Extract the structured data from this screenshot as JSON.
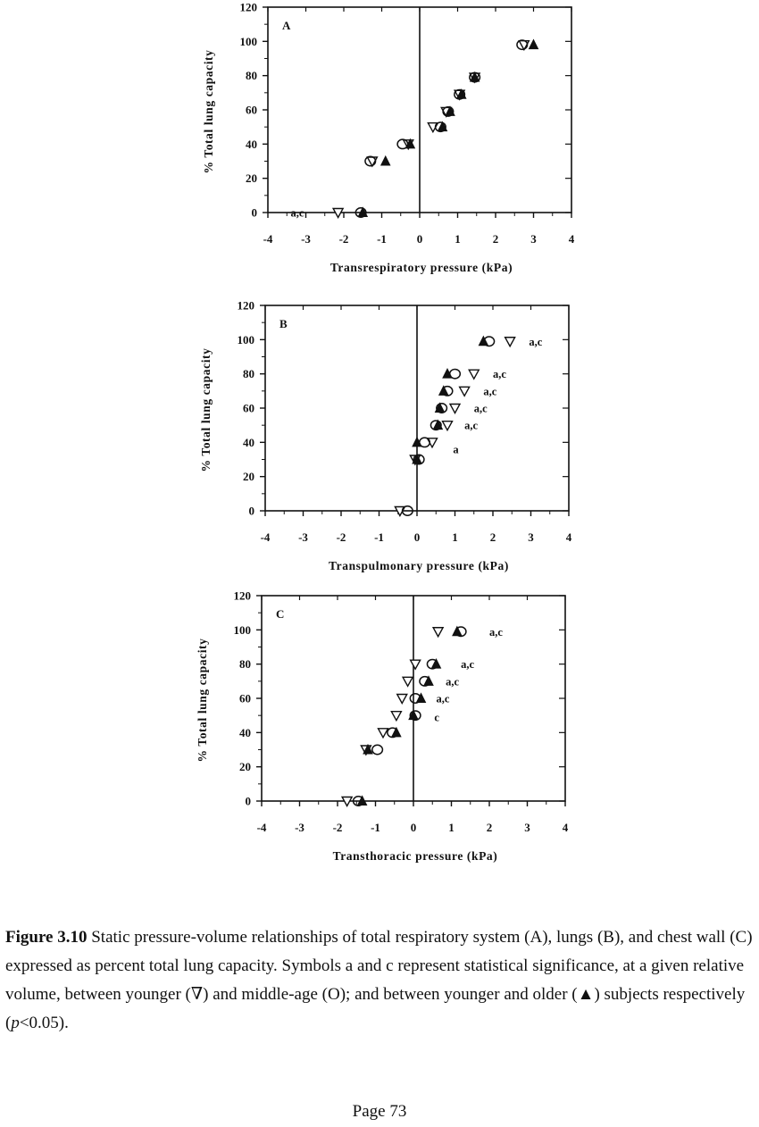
{
  "chart_data": [
    {
      "type": "scatter",
      "panel_label": "A",
      "xlabel": "Transrespiratory pressure (kPa)",
      "ylabel": "% Total lung capacity",
      "xlim": [
        -4,
        4
      ],
      "ylim": [
        0,
        120
      ],
      "xticks": [
        "-4",
        "-3",
        "-2",
        "-1",
        "0",
        "1",
        "2",
        "3",
        "4"
      ],
      "yticks": [
        "0",
        "20",
        "40",
        "60",
        "80",
        "100",
        "120"
      ],
      "series": [
        {
          "marker": "down-triangle",
          "points": [
            [
              -2.15,
              0
            ],
            [
              -1.25,
              30
            ],
            [
              -0.3,
              40
            ],
            [
              0.35,
              50
            ],
            [
              0.7,
              59
            ],
            [
              1.05,
              69
            ],
            [
              1.45,
              79
            ],
            [
              2.75,
              98
            ]
          ]
        },
        {
          "marker": "circle",
          "points": [
            [
              -1.55,
              0
            ],
            [
              -1.3,
              30
            ],
            [
              -0.45,
              40
            ],
            [
              0.55,
              50
            ],
            [
              0.75,
              59
            ],
            [
              1.05,
              69
            ],
            [
              1.45,
              79
            ],
            [
              2.7,
              98
            ]
          ]
        },
        {
          "marker": "up-triangle",
          "points": [
            [
              -1.5,
              0
            ],
            [
              -0.9,
              30
            ],
            [
              -0.25,
              40
            ],
            [
              0.6,
              50
            ],
            [
              0.8,
              59
            ],
            [
              1.1,
              69
            ],
            [
              1.45,
              79
            ],
            [
              3.0,
              98
            ]
          ]
        }
      ],
      "annotations": [
        {
          "text": "a,c",
          "x": -3.4,
          "y": 0
        }
      ]
    },
    {
      "type": "scatter",
      "panel_label": "B",
      "xlabel": "Transpulmonary pressure (kPa)",
      "ylabel": "% Total lung capacity",
      "xlim": [
        -4,
        4
      ],
      "ylim": [
        0,
        120
      ],
      "xticks": [
        "-4",
        "-3",
        "-2",
        "-1",
        "0",
        "1",
        "2",
        "3",
        "4"
      ],
      "yticks": [
        "0",
        "20",
        "40",
        "60",
        "80",
        "100",
        "120"
      ],
      "series": [
        {
          "marker": "down-triangle",
          "points": [
            [
              -0.45,
              0
            ],
            [
              -0.05,
              30
            ],
            [
              0.4,
              40
            ],
            [
              0.8,
              50
            ],
            [
              1.0,
              60
            ],
            [
              1.25,
              70
            ],
            [
              1.5,
              80
            ],
            [
              2.45,
              99
            ]
          ]
        },
        {
          "marker": "circle",
          "points": [
            [
              -0.25,
              0
            ],
            [
              0.05,
              30
            ],
            [
              0.2,
              40
            ],
            [
              0.5,
              50
            ],
            [
              0.65,
              60
            ],
            [
              0.8,
              70
            ],
            [
              1.0,
              80
            ],
            [
              1.9,
              99
            ]
          ]
        },
        {
          "marker": "up-triangle",
          "points": [
            [
              0.0,
              30
            ],
            [
              0.0,
              40
            ],
            [
              0.55,
              50
            ],
            [
              0.6,
              60
            ],
            [
              0.7,
              70
            ],
            [
              0.8,
              80
            ],
            [
              1.75,
              99
            ]
          ]
        }
      ],
      "annotations": [
        {
          "text": "a,c",
          "x": 2.95,
          "y": 99
        },
        {
          "text": "a,c",
          "x": 2.0,
          "y": 80
        },
        {
          "text": "a,c",
          "x": 1.75,
          "y": 70
        },
        {
          "text": "a,c",
          "x": 1.5,
          "y": 60
        },
        {
          "text": "a,c",
          "x": 1.25,
          "y": 50
        },
        {
          "text": "a",
          "x": 0.95,
          "y": 36
        }
      ]
    },
    {
      "type": "scatter",
      "panel_label": "C",
      "xlabel": "Transthoracic pressure (kPa)",
      "ylabel": "% Total lung capacity",
      "xlim": [
        -4,
        4
      ],
      "ylim": [
        0,
        120
      ],
      "xticks": [
        "-4",
        "-3",
        "-2",
        "-1",
        "0",
        "1",
        "2",
        "3",
        "4"
      ],
      "yticks": [
        "0",
        "20",
        "40",
        "60",
        "80",
        "100",
        "120"
      ],
      "series": [
        {
          "marker": "down-triangle",
          "points": [
            [
              -1.75,
              0
            ],
            [
              -1.25,
              30
            ],
            [
              -0.8,
              40
            ],
            [
              -0.45,
              50
            ],
            [
              -0.3,
              60
            ],
            [
              -0.15,
              70
            ],
            [
              0.05,
              80
            ],
            [
              0.65,
              99
            ]
          ]
        },
        {
          "marker": "circle",
          "points": [
            [
              -1.45,
              0
            ],
            [
              -0.95,
              30
            ],
            [
              -0.55,
              40
            ],
            [
              0.05,
              50
            ],
            [
              0.05,
              60
            ],
            [
              0.3,
              70
            ],
            [
              0.5,
              80
            ],
            [
              1.25,
              99
            ]
          ]
        },
        {
          "marker": "up-triangle",
          "points": [
            [
              -1.35,
              0
            ],
            [
              -1.2,
              30
            ],
            [
              -0.45,
              40
            ],
            [
              0.0,
              50
            ],
            [
              0.2,
              60
            ],
            [
              0.4,
              70
            ],
            [
              0.6,
              80
            ],
            [
              1.15,
              99
            ]
          ]
        }
      ],
      "annotations": [
        {
          "text": "a,c",
          "x": 2.0,
          "y": 99
        },
        {
          "text": "a,c",
          "x": 1.25,
          "y": 80
        },
        {
          "text": "a,c",
          "x": 0.85,
          "y": 70
        },
        {
          "text": "a,c",
          "x": 0.6,
          "y": 60
        },
        {
          "text": "c",
          "x": 0.55,
          "y": 49
        }
      ]
    }
  ],
  "caption": {
    "label": "Figure 3.10",
    "text_1": " Static pressure-volume relationships of total respiratory system (A), lungs (B), and chest wall (C) expressed as percent total lung capacity. Symbols a and c represent statistical significance, at a given relative volume, between younger (",
    "sym_young": "∇",
    "text_2": ") and middle-age (",
    "sym_middle": "O",
    "text_3": "); and between younger and older (",
    "sym_old": "▲",
    "text_4": ") subjects respectively (",
    "p_italic": "p",
    "text_5": "<0.05)."
  },
  "page_number": "Page 73"
}
